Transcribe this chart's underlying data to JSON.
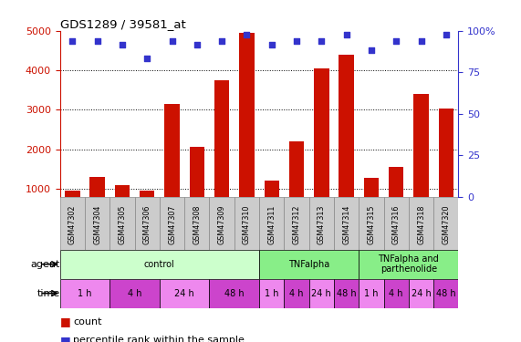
{
  "title": "GDS1289 / 39581_at",
  "samples": [
    "GSM47302",
    "GSM47304",
    "GSM47305",
    "GSM47306",
    "GSM47307",
    "GSM47308",
    "GSM47309",
    "GSM47310",
    "GSM47311",
    "GSM47312",
    "GSM47313",
    "GSM47314",
    "GSM47315",
    "GSM47316",
    "GSM47318",
    "GSM47320"
  ],
  "counts": [
    950,
    1300,
    1100,
    950,
    3150,
    2050,
    3750,
    4950,
    1200,
    2200,
    4050,
    4400,
    1280,
    1550,
    3400,
    3020
  ],
  "percentiles": [
    95,
    95,
    93,
    86,
    95,
    93,
    95,
    98,
    93,
    95,
    95,
    98,
    90,
    95,
    95,
    98
  ],
  "bar_color": "#cc1100",
  "dot_color": "#3333cc",
  "ylim_left": [
    800,
    5000
  ],
  "yticks_left": [
    1000,
    2000,
    3000,
    4000,
    5000
  ],
  "yticks_right": [
    0,
    25,
    50,
    75,
    100
  ],
  "agent_groups": [
    {
      "label": "control",
      "start": 0,
      "end": 8,
      "color": "#ccffcc"
    },
    {
      "label": "TNFalpha",
      "start": 8,
      "end": 12,
      "color": "#88ee88"
    },
    {
      "label": "TNFalpha and\nparthenolide",
      "start": 12,
      "end": 16,
      "color": "#88ee88"
    }
  ],
  "time_groups": [
    {
      "label": "1 h",
      "start": 0,
      "end": 2,
      "color": "#ee88ee"
    },
    {
      "label": "4 h",
      "start": 2,
      "end": 4,
      "color": "#cc44cc"
    },
    {
      "label": "24 h",
      "start": 4,
      "end": 6,
      "color": "#ee88ee"
    },
    {
      "label": "48 h",
      "start": 6,
      "end": 8,
      "color": "#cc44cc"
    },
    {
      "label": "1 h",
      "start": 8,
      "end": 9,
      "color": "#ee88ee"
    },
    {
      "label": "4 h",
      "start": 9,
      "end": 10,
      "color": "#cc44cc"
    },
    {
      "label": "24 h",
      "start": 10,
      "end": 11,
      "color": "#ee88ee"
    },
    {
      "label": "48 h",
      "start": 11,
      "end": 12,
      "color": "#cc44cc"
    },
    {
      "label": "1 h",
      "start": 12,
      "end": 13,
      "color": "#ee88ee"
    },
    {
      "label": "4 h",
      "start": 13,
      "end": 14,
      "color": "#cc44cc"
    },
    {
      "label": "24 h",
      "start": 14,
      "end": 15,
      "color": "#ee88ee"
    },
    {
      "label": "48 h",
      "start": 15,
      "end": 16,
      "color": "#cc44cc"
    }
  ],
  "legend_count_label": "count",
  "legend_pct_label": "percentile rank within the sample",
  "agent_label": "agent",
  "time_label": "time",
  "sample_box_color": "#cccccc",
  "sample_box_edge": "#888888"
}
